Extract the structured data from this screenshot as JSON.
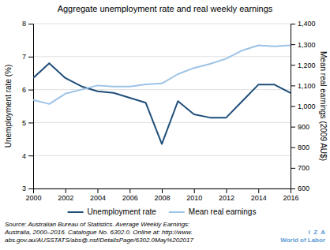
{
  "chart_data": {
    "type": "line",
    "title": "Aggregate unemployment rate and real weekly earnings",
    "x": [
      2000,
      2001,
      2002,
      2003,
      2004,
      2005,
      2006,
      2007,
      2008,
      2009,
      2010,
      2011,
      2012,
      2013,
      2014,
      2015,
      2016
    ],
    "series": [
      {
        "name": "Unemployment rate",
        "color": "#1f4e79",
        "axis": "y",
        "values": [
          6.35,
          6.8,
          6.35,
          6.1,
          5.95,
          5.9,
          5.75,
          5.6,
          4.35,
          5.65,
          5.25,
          5.15,
          5.15,
          5.65,
          6.15,
          6.15,
          5.9
        ]
      },
      {
        "name": "Mean real earnings",
        "color": "#9dc3e6",
        "axis": "y2",
        "values": [
          1030,
          1010,
          1060,
          1080,
          1100,
          1095,
          1095,
          1105,
          1110,
          1155,
          1185,
          1205,
          1230,
          1270,
          1295,
          1290,
          1295
        ]
      }
    ],
    "xlim": [
      2000,
      2016
    ],
    "xticks": [
      2000,
      2002,
      2004,
      2006,
      2008,
      2010,
      2012,
      2014,
      2016
    ],
    "ylim": [
      3,
      8
    ],
    "yticks": [
      3,
      4,
      5,
      6,
      7,
      8
    ],
    "y2lim": [
      600,
      1400
    ],
    "y2ticks": [
      600,
      700,
      800,
      900,
      {
        "value": 1000,
        "label": "1,000"
      },
      {
        "value": 1100,
        "label": "1,100"
      },
      {
        "value": 1200,
        "label": "1,200"
      },
      {
        "value": 1300,
        "label": "1,300"
      },
      {
        "value": 1400,
        "label": "1,400"
      }
    ],
    "ylabel": "Unemployment rate (%)",
    "y2label": "Mean real earnings (2009 AU$)",
    "grid": true,
    "legend": "bottom",
    "annotations": [
      "Source: Australian Bureau of Statistics. Average Weekly Earnings:",
      "Australia, 2000–2016. Catalogue No. 6302.0. Online at: http://www.",
      "abs.gov.au/AUSSTATS/abs@.nsf/DetailsPage/6302.0May%202017",
      "I  Z  A",
      "World of Labor"
    ]
  }
}
